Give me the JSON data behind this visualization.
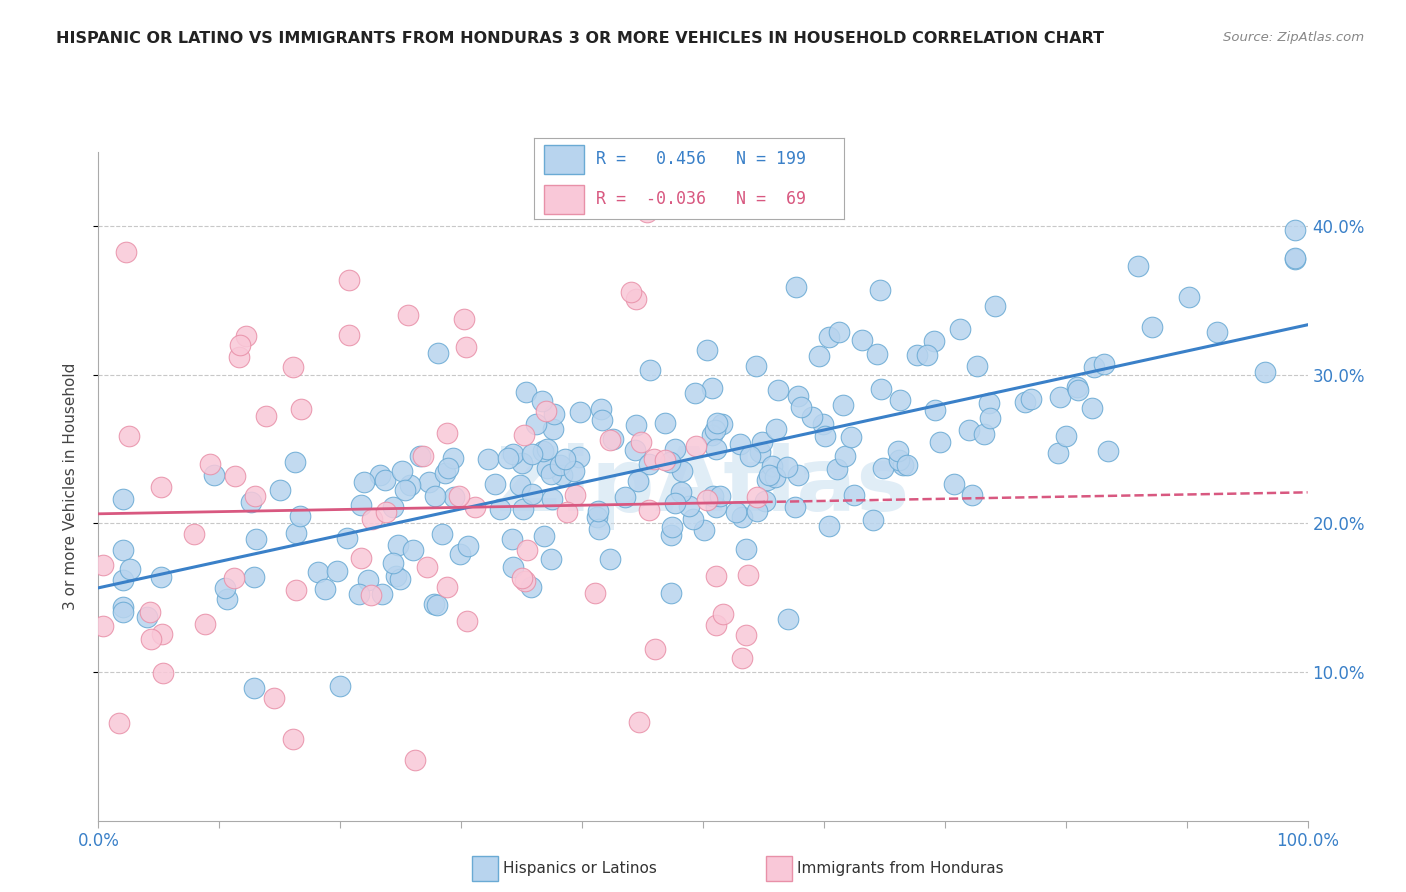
{
  "title": "HISPANIC OR LATINO VS IMMIGRANTS FROM HONDURAS 3 OR MORE VEHICLES IN HOUSEHOLD CORRELATION CHART",
  "source": "Source: ZipAtlas.com",
  "ylabel": "3 or more Vehicles in Household",
  "yticks": [
    "10.0%",
    "20.0%",
    "30.0%",
    "40.0%"
  ],
  "ytick_vals": [
    0.1,
    0.2,
    0.3,
    0.4
  ],
  "watermark": "ZipAtlas",
  "legend_blue_label": "Hispanics or Latinos",
  "legend_pink_label": "Immigrants from Honduras",
  "blue_R": "0.456",
  "blue_N": "199",
  "pink_R": "-0.036",
  "pink_N": "69",
  "blue_fill_color": "#b8d4ee",
  "pink_fill_color": "#f9c8d8",
  "blue_edge_color": "#6aaad4",
  "pink_edge_color": "#e890a8",
  "blue_line_color": "#3a80c8",
  "pink_line_color": "#d85880",
  "xlim": [
    0.0,
    1.0
  ],
  "ylim": [
    0.0,
    0.45
  ],
  "blue_seed": 12,
  "pink_seed": 99,
  "n_blue": 199,
  "n_pink": 69
}
